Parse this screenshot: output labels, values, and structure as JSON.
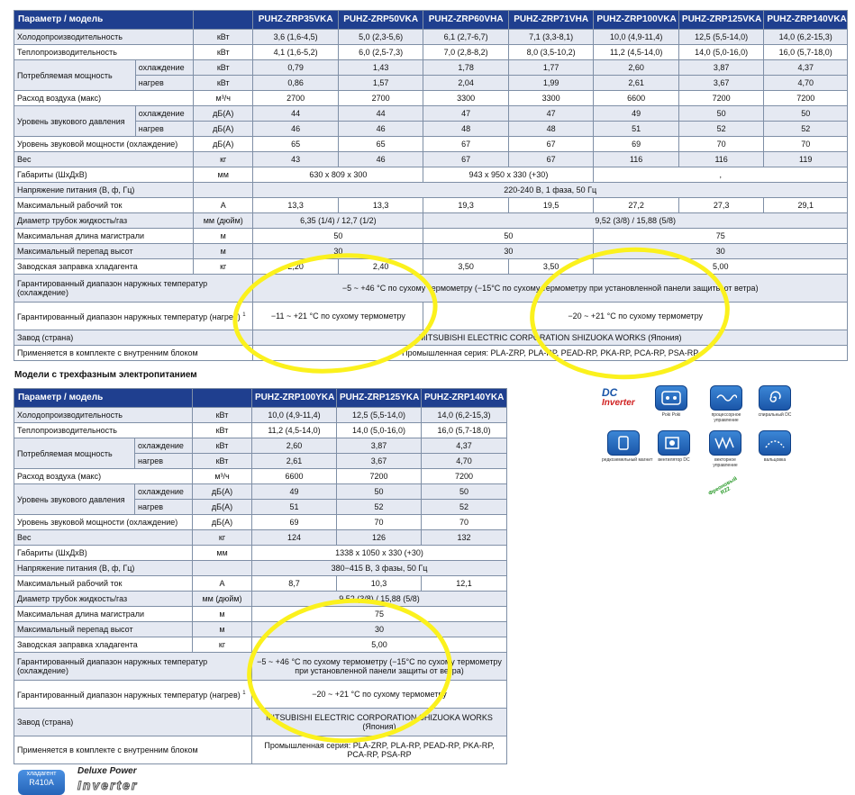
{
  "header_left": "Параметр / модель",
  "table1": {
    "models": [
      "PUHZ-ZRP35VKA",
      "PUHZ-ZRP50VKA",
      "PUHZ-ZRP60VHA",
      "PUHZ-ZRP71VHA",
      "PUHZ-ZRP100VKA",
      "PUHZ-ZRP125VKA",
      "PUHZ-ZRP140VKA"
    ],
    "rows": {
      "cool": {
        "label": "Холодопроизводительность",
        "unit": "кВт",
        "v": [
          "3,6 (1,6-4,5)",
          "5,0 (2,3-5,6)",
          "6,1 (2,7-6,7)",
          "7,1 (3,3-8,1)",
          "10,0 (4,9-11,4)",
          "12,5 (5,5-14,0)",
          "14,0 (6,2-15,3)"
        ]
      },
      "heat": {
        "label": "Теплопроизводительность",
        "unit": "кВт",
        "v": [
          "4,1 (1,6-5,2)",
          "6,0 (2,5-7,3)",
          "7,0 (2,8-8,2)",
          "8,0 (3,5-10,2)",
          "11,2 (4,5-14,0)",
          "14,0 (5,0-16,0)",
          "16,0 (5,7-18,0)"
        ]
      },
      "power": {
        "label": "Потребляемая мощность",
        "sub1": "охлаждение",
        "sub2": "нагрев",
        "unit": "кВт",
        "v1": [
          "0,79",
          "1,43",
          "1,78",
          "1,77",
          "2,60",
          "3,87",
          "4,37"
        ],
        "v2": [
          "0,86",
          "1,57",
          "2,04",
          "1,99",
          "2,61",
          "3,67",
          "4,70"
        ]
      },
      "air": {
        "label": "Расход воздуха (макс)",
        "unit": "м³/ч",
        "v": [
          "2700",
          "2700",
          "3300",
          "3300",
          "6600",
          "7200",
          "7200"
        ]
      },
      "sp": {
        "label": "Уровень звукового давления",
        "sub1": "охлаждение",
        "sub2": "нагрев",
        "unit": "дБ(А)",
        "v1": [
          "44",
          "44",
          "47",
          "47",
          "49",
          "50",
          "50"
        ],
        "v2": [
          "46",
          "46",
          "48",
          "48",
          "51",
          "52",
          "52"
        ]
      },
      "sw": {
        "label": "Уровень звуковой мощности (охлаждение)",
        "unit": "дБ(А)",
        "v": [
          "65",
          "65",
          "67",
          "67",
          "69",
          "70",
          "70"
        ]
      },
      "weight": {
        "label": "Вес",
        "unit": "кг",
        "v": [
          "43",
          "46",
          "67",
          "67",
          "116",
          "116",
          "119"
        ]
      },
      "dims": {
        "label": "Габариты (ШхДхВ)",
        "unit": "мм",
        "a": "630 x 809 x 300",
        "b": "943 x 950 x 330 (+30)",
        "c": ","
      },
      "volt": {
        "label": "Напряжение питания (В, ф, Гц)",
        "v": "220-240 В, 1 фаза, 50 Гц"
      },
      "cur": {
        "label": "Максимальный рабочий ток",
        "unit": "А",
        "v": [
          "13,3",
          "13,3",
          "19,3",
          "19,5",
          "27,2",
          "27,3",
          "29,1"
        ]
      },
      "pipe": {
        "label": "Диаметр трубок жидкость/газ",
        "unit": "мм (дюйм)",
        "a": "6,35 (1/4) / 12,7 (1/2)",
        "b": "9,52 (3/8) / 15,88 (5/8)"
      },
      "len": {
        "label": "Максимальная длина магистрали",
        "unit": "м",
        "a": "50",
        "b": "50",
        "c": "75"
      },
      "hgt": {
        "label": "Максимальный перепад высот",
        "unit": "м",
        "a": "30",
        "b": "30",
        "c": "30"
      },
      "chg": {
        "label": "Заводская заправка хладагента",
        "unit": "кг",
        "v": [
          "2,20",
          "2,40",
          "3,50",
          "3,50"
        ],
        "c": "5,00"
      },
      "tc": {
        "label": "Гарантированный диапазон наружных температур (охлаждение)",
        "v": "−5 ~ +46 °С по сухому термометру (−15°С по сухому термометру при установленной панели защиты от ветра)"
      },
      "th": {
        "label": "Гарантированный диапазон наружных температур (нагрев)",
        "sup": "1",
        "a": "−11 ~ +21 °С по сухому термометру",
        "b": "−20 ~ +21 °С по сухому термометру"
      },
      "fac": {
        "label": "Завод (страна)",
        "v": "MITSUBISHI ELECTRIC CORPORATION SHIZUOKA WORKS (Япония)"
      },
      "app": {
        "label": "Применяется в комплекте с внутренним блоком",
        "v": "Промышленная серия: PLA-ZRP, PLA-RP, PEAD-RP, PKA-RP, PCA-RP, PSA-RP"
      }
    }
  },
  "section2_title": "Модели с трехфазным электропитанием",
  "table2": {
    "models": [
      "PUHZ-ZRP100YKA",
      "PUHZ-ZRP125YKA",
      "PUHZ-ZRP140YKA"
    ],
    "rows": {
      "cool": {
        "label": "Холодопроизводительность",
        "unit": "кВт",
        "v": [
          "10,0 (4,9-11,4)",
          "12,5 (5,5-14,0)",
          "14,0 (6,2-15,3)"
        ]
      },
      "heat": {
        "label": "Теплопроизводительность",
        "unit": "кВт",
        "v": [
          "11,2 (4,5-14,0)",
          "14,0 (5,0-16,0)",
          "16,0 (5,7-18,0)"
        ]
      },
      "power": {
        "label": "Потребляемая мощность",
        "sub1": "охлаждение",
        "sub2": "нагрев",
        "unit": "кВт",
        "v1": [
          "2,60",
          "3,87",
          "4,37"
        ],
        "v2": [
          "2,61",
          "3,67",
          "4,70"
        ]
      },
      "air": {
        "label": "Расход воздуха (макс)",
        "unit": "м³/ч",
        "v": [
          "6600",
          "7200",
          "7200"
        ]
      },
      "sp": {
        "label": "Уровень звукового давления",
        "sub1": "охлаждение",
        "sub2": "нагрев",
        "unit": "дБ(А)",
        "v1": [
          "49",
          "50",
          "50"
        ],
        "v2": [
          "51",
          "52",
          "52"
        ]
      },
      "sw": {
        "label": "Уровень звуковой мощности (охлаждение)",
        "unit": "дБ(А)",
        "v": [
          "69",
          "70",
          "70"
        ]
      },
      "weight": {
        "label": "Вес",
        "unit": "кг",
        "v": [
          "124",
          "126",
          "132"
        ]
      },
      "dims": {
        "label": "Габариты (ШхДхВ)",
        "unit": "мм",
        "v": "1338 x 1050 x 330 (+30)"
      },
      "volt": {
        "label": "Напряжение питания (В, ф, Гц)",
        "v": "380−415 В, 3 фазы, 50 Гц"
      },
      "cur": {
        "label": "Максимальный рабочий ток",
        "unit": "А",
        "v": [
          "8,7",
          "10,3",
          "12,1"
        ]
      },
      "pipe": {
        "label": "Диаметр трубок жидкость/газ",
        "unit": "мм (дюйм)",
        "v": "9,52 (3/8) / 15,88 (5/8)"
      },
      "len": {
        "label": "Максимальная длина магистрали",
        "unit": "м",
        "v": "75"
      },
      "hgt": {
        "label": "Максимальный перепад высот",
        "unit": "м",
        "v": "30"
      },
      "chg": {
        "label": "Заводская заправка хладагента",
        "unit": "кг",
        "v": "5,00"
      },
      "tc": {
        "label": "Гарантированный диапазон наружных температур (охлаждение)",
        "v": "−5 ~ +46 °С по сухому термометру (−15°С по сухому термометру при установленной панели защиты от ветра)"
      },
      "th": {
        "label": "Гарантированный диапазон наружных температур (нагрев)",
        "sup": "1",
        "v": "−20 ~ +21 °С по сухому термометру"
      },
      "fac": {
        "label": "Завод (страна)",
        "v": "MITSUBISHI ELECTRIC CORPORATION SHIZUOKA WORKS (Япония)"
      },
      "app": {
        "label": "Применяется в комплекте с внутренним блоком",
        "v": "Промышленная серия: PLA-ZRP, PLA-RP, PEAD-RP, PKA-RP, PCA-RP, PSA-RP"
      }
    }
  },
  "icons": {
    "dc_top": "DC",
    "dc_bottom": "Inverter",
    "poki": "Poki Poki",
    "proc": "процессорное управление",
    "spiral": "спиральный DC",
    "magnet": "редкоземельный магнит",
    "fan": "вентилятор DC",
    "vector": "векторное управление",
    "flare": "вальцовка",
    "freon": "Фреоновый R22"
  },
  "badge": {
    "line1": "хладагент",
    "line2": "R410A"
  },
  "deluxe": "Deluxe Power",
  "inverter_word": "Inverter",
  "colors": {
    "header": "#1f3f8f",
    "highlight": "#fbf11d",
    "row_alt": "#e5e9f2"
  }
}
